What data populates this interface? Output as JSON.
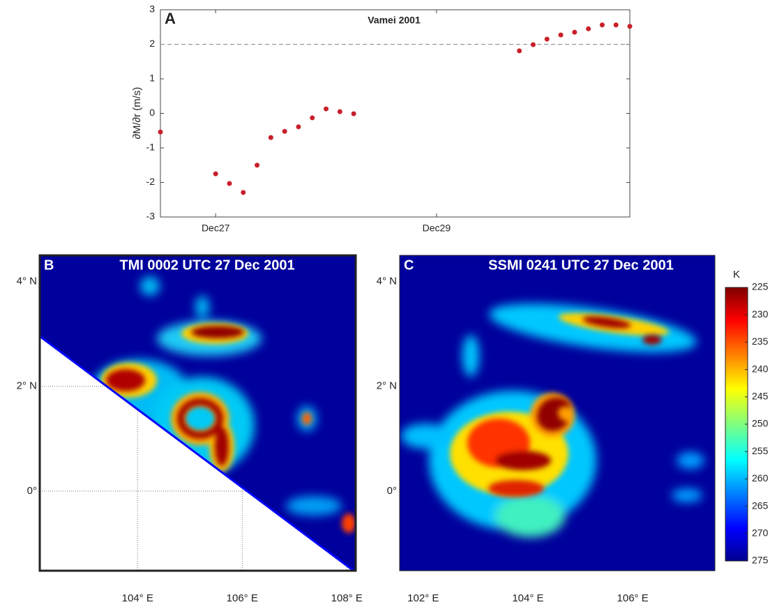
{
  "chart_data": [
    {
      "type": "scatter",
      "panel": "A",
      "title": "Vamei 2001",
      "y_label": "∂M/∂r (m/s)",
      "x": [
        26.5,
        27,
        27.125,
        27.25,
        27.375,
        27.5,
        27.625,
        27.75,
        27.875,
        28,
        28.125,
        28.25,
        29.75,
        29.875,
        30,
        30.125,
        30.25,
        30.375,
        30.5,
        30.625,
        30.75
      ],
      "values": [
        -0.54,
        -1.75,
        -2.03,
        -2.29,
        -1.5,
        -0.7,
        -0.52,
        -0.39,
        -0.13,
        0.13,
        0.05,
        -0.01,
        1.81,
        1.99,
        2.15,
        2.27,
        2.35,
        2.45,
        2.56,
        2.56,
        2.52
      ],
      "color": "#c8202a",
      "reference_line": 2,
      "xlim": [
        26.5,
        30.75
      ],
      "xticks": [
        {
          "value": 27,
          "label": "Dec27"
        },
        {
          "value": 29,
          "label": "Dec29"
        }
      ],
      "ylim": [
        -3,
        3
      ],
      "yticks": [
        -3,
        -2,
        -1,
        0,
        1,
        2,
        3
      ]
    },
    {
      "type": "map",
      "panel": "B",
      "title": "TMI 0002 UTC 27 Dec 2001",
      "grid": true,
      "xlim": [
        102.13,
        108.17
      ],
      "xticks": [
        {
          "value": 104,
          "label": "104° E"
        },
        {
          "value": 106,
          "label": "106° E"
        },
        {
          "value": 108,
          "label": "108° E"
        }
      ],
      "ylim": [
        -1.52,
        4.5
      ],
      "yticks": [
        {
          "value": 0,
          "label": "0°"
        },
        {
          "value": 2,
          "label": "2° N"
        },
        {
          "value": 4,
          "label": "4° N"
        }
      ]
    },
    {
      "type": "map",
      "panel": "C",
      "title": "SSMI 0241 UTC 27 Dec 2001",
      "grid": false,
      "xlim": [
        101.55,
        107.57
      ],
      "xticks": [
        {
          "value": 102,
          "label": "102° E"
        },
        {
          "value": 104,
          "label": "104° E"
        },
        {
          "value": 106,
          "label": "106° E"
        }
      ],
      "ylim": [
        -1.52,
        4.5
      ],
      "yticks": [
        {
          "value": 0,
          "label": "0°"
        },
        {
          "value": 2,
          "label": "2° N"
        },
        {
          "value": 4,
          "label": "4° N"
        }
      ]
    },
    {
      "type": "colorbar",
      "label": "K",
      "lim": [
        225,
        275
      ],
      "reversed": true,
      "ticks": [
        225,
        230,
        235,
        240,
        245,
        250,
        255,
        260,
        265,
        270,
        275
      ]
    }
  ]
}
